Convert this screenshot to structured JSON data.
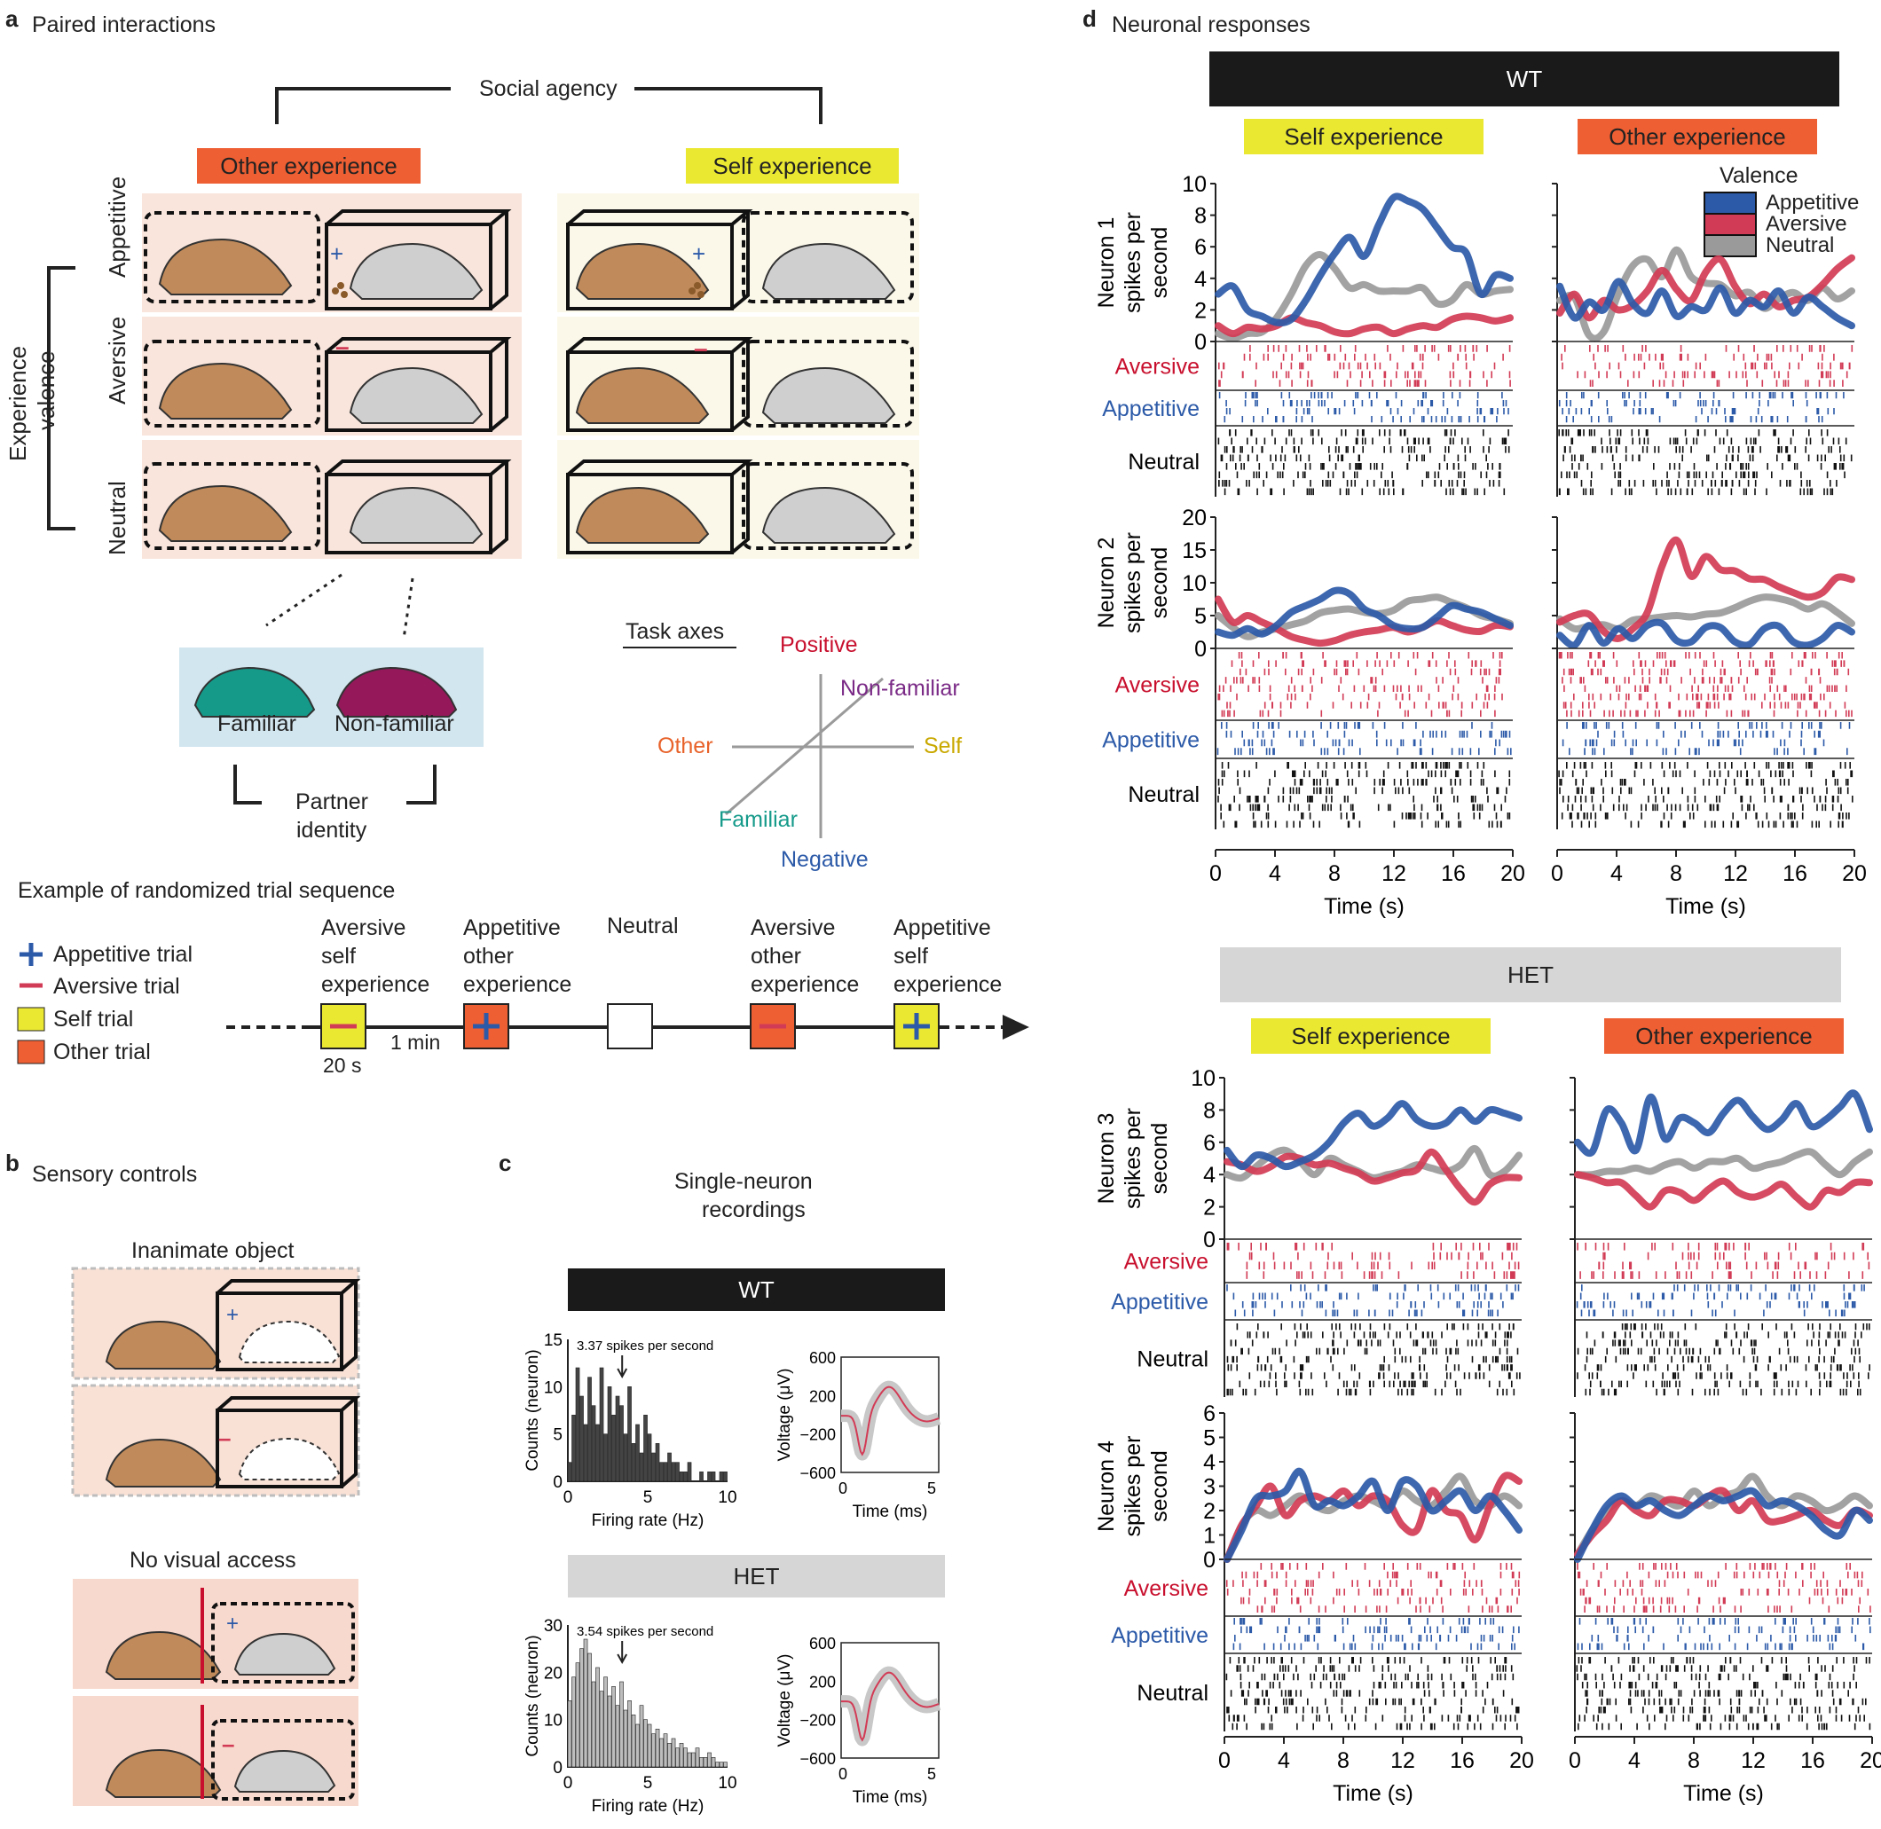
{
  "panel_a": {
    "letter": "a",
    "title": "Paired interactions",
    "social_agency": "Social agency",
    "other_experience": "Other experience",
    "self_experience": "Self experience",
    "experience_valence": [
      "Experience",
      "valence"
    ],
    "rows": [
      "Appetitive",
      "Aversive",
      "Neutral"
    ],
    "familiar": "Familiar",
    "non_familiar": "Non-familiar",
    "partner_identity": [
      "Partner",
      "identity"
    ],
    "task_axes": {
      "title": "Task axes",
      "positive": "Positive",
      "negative": "Negative",
      "non_familiar": "Non-familiar",
      "familiar": "Familiar",
      "other": "Other",
      "self": "Self"
    },
    "sequence": {
      "title": "Example of randomized trial sequence",
      "legend": [
        "Appetitive trial",
        "Aversive trial",
        "Self trial",
        "Other trial"
      ],
      "trials": [
        {
          "label": [
            "Aversive",
            "self",
            "experience"
          ]
        },
        {
          "label": [
            "Appetitive",
            "other",
            "experience"
          ]
        },
        {
          "label": [
            "Neutral"
          ]
        },
        {
          "label": [
            "Aversive",
            "other",
            "experience"
          ]
        },
        {
          "label": [
            "Appetitive",
            "self",
            "experience"
          ]
        }
      ],
      "duration_trial": "20 s",
      "duration_gap": "1 min"
    }
  },
  "panel_b": {
    "letter": "b",
    "title": "Sensory controls",
    "inanimate": "Inanimate object",
    "no_visual": "No visual access"
  },
  "panel_c": {
    "letter": "c",
    "title": [
      "Single-neuron",
      "recordings"
    ],
    "wt": "WT",
    "het": "HET",
    "wt_hist": {
      "annotation": "3.37 spikes per second",
      "ylabel": "Counts (neuron)",
      "xlabel": "Firing rate (Hz)",
      "yticks": [
        "0",
        "5",
        "10",
        "15"
      ],
      "xticks": [
        "0",
        "5",
        "10"
      ],
      "values": [
        2,
        7,
        12,
        9,
        6,
        11,
        8,
        6,
        12,
        5,
        10,
        7,
        9,
        8,
        5,
        10,
        4,
        6,
        3,
        7,
        5,
        3,
        4,
        2,
        2,
        3,
        2,
        2,
        1,
        1,
        2,
        0,
        0,
        1,
        0,
        1,
        1,
        0,
        1,
        1
      ]
    },
    "het_hist": {
      "annotation": "3.54 spikes per second",
      "ylabel": "Counts (neuron)",
      "xlabel": "Firing rate (Hz)",
      "yticks": [
        "0",
        "10",
        "20",
        "30"
      ],
      "xticks": [
        "0",
        "5",
        "10"
      ],
      "values": [
        14,
        19,
        22,
        25,
        27,
        24,
        18,
        21,
        16,
        19,
        15,
        17,
        13,
        18,
        12,
        14,
        11,
        9,
        13,
        10,
        9,
        7,
        8,
        6,
        7,
        5,
        6,
        4,
        5,
        4,
        3,
        3,
        4,
        2,
        2,
        3,
        2,
        1,
        1,
        1
      ]
    },
    "waveform": {
      "ylabel": "Voltage (μV)",
      "xlabel": "Time (ms)",
      "yticks": [
        "600",
        "200",
        "−200",
        "−600"
      ],
      "xticks": [
        "0",
        "5"
      ]
    }
  },
  "panel_d": {
    "letter": "d",
    "title": "Neuronal responses",
    "wt": "WT",
    "het": "HET",
    "self_experience": "Self experience",
    "other_experience": "Other experience",
    "legend_title": "Valence",
    "legend": [
      "Appetitive",
      "Aversive",
      "Neutral"
    ],
    "raster_labels": [
      "Aversive",
      "Appetitive",
      "Neutral"
    ],
    "xlabel": "Time (s)",
    "xticks": [
      "0",
      "4",
      "8",
      "12",
      "16",
      "20"
    ],
    "colors": {
      "appetitive": "#2c5aa8",
      "aversive": "#d23b55",
      "neutral": "#9a9a9a"
    },
    "neurons": [
      {
        "ylabel": [
          "Neuron 1",
          "spikes per",
          "second"
        ],
        "yticks": [
          "0",
          "2",
          "4",
          "6",
          "8",
          "10"
        ],
        "ymax": 10,
        "self": {
          "appetitive": [
            3,
            3.5,
            2,
            1.6,
            1.2,
            1.4,
            2.6,
            4.2,
            5.6,
            6.6,
            5.4,
            7.4,
            9.1,
            8.9,
            8.4,
            7.2,
            6,
            5.6,
            3,
            4.2,
            4
          ],
          "aversive": [
            1,
            0.5,
            0.9,
            0.8,
            1,
            1.5,
            1.2,
            1,
            0.6,
            0.5,
            0.8,
            0.9,
            0.5,
            0.8,
            1,
            0.9,
            1.4,
            1.6,
            1.5,
            1.3,
            1.5
          ],
          "neutral": [
            0.5,
            0.2,
            0.5,
            0.6,
            1.5,
            3,
            4.8,
            5.5,
            4.6,
            3.4,
            3.6,
            3.2,
            3.2,
            3.2,
            3.4,
            2.4,
            2.6,
            3.6,
            3,
            3.2,
            3.3
          ]
        },
        "other": {
          "appetitive": [
            3.5,
            1.5,
            2.5,
            2,
            3.8,
            2.4,
            1.8,
            3.2,
            1.6,
            2.2,
            2,
            3.4,
            1.8,
            2.6,
            2.2,
            3.2,
            1.8,
            2.8,
            2.2,
            1.5,
            1
          ],
          "aversive": [
            1.8,
            3,
            1.5,
            2.6,
            2,
            2.3,
            3.2,
            4.5,
            3.3,
            2.6,
            4.4,
            5.2,
            3.5,
            2.4,
            3,
            2.2,
            2.6,
            2.8,
            3.6,
            4.6,
            5.3
          ],
          "neutral": [
            2.6,
            2.8,
            0.4,
            0.6,
            3,
            4.8,
            5.2,
            4.1,
            5.8,
            4.1,
            3.7,
            3.6,
            2.9,
            3.1,
            2.1,
            2.7,
            3.1,
            2.6,
            3.4,
            2.7,
            3.2
          ]
        }
      },
      {
        "ylabel": [
          "Neuron 2",
          "spikes per",
          "second"
        ],
        "yticks": [
          "0",
          "5",
          "10",
          "15",
          "20"
        ],
        "ymax": 20,
        "self": {
          "appetitive": [
            2.5,
            2,
            3,
            2.2,
            3.5,
            5.5,
            6.5,
            7.5,
            8.8,
            8.3,
            6,
            5,
            3.5,
            3,
            3.2,
            4.8,
            6.5,
            6,
            5.5,
            4.5,
            3.5
          ],
          "aversive": [
            7.5,
            4,
            5,
            4,
            3,
            1.8,
            1.2,
            0.8,
            1.2,
            2,
            2.5,
            2.8,
            3.2,
            2.5,
            3.2,
            4.2,
            3.5,
            2.8,
            2.6,
            3.5,
            3.3
          ],
          "neutral": [
            5,
            3.2,
            1.8,
            2.5,
            3,
            3.6,
            4.2,
            5.4,
            5.8,
            6,
            5.5,
            5.3,
            5.8,
            7.2,
            7.5,
            7.8,
            7,
            6.2,
            5,
            4.5,
            3.8
          ]
        },
        "other": {
          "appetitive": [
            2,
            0.5,
            3.5,
            0.8,
            3,
            1.5,
            3.5,
            3.8,
            1.2,
            1,
            3.2,
            3.2,
            1,
            0.6,
            3,
            3.4,
            1,
            0.5,
            1.5,
            3.5,
            2.5
          ],
          "aversive": [
            4,
            5,
            5.2,
            2.6,
            1.5,
            3,
            5.5,
            12.5,
            16.5,
            11,
            14,
            12,
            11.8,
            10.6,
            10.5,
            9.4,
            8.5,
            7.8,
            8.5,
            10.8,
            10.5
          ],
          "neutral": [
            4.5,
            3,
            3.4,
            3.6,
            3,
            4.3,
            4.5,
            4.8,
            5,
            4.8,
            5.2,
            5.4,
            6.2,
            7.2,
            7.8,
            7.6,
            7,
            6,
            6.8,
            5.5,
            3.8
          ]
        }
      },
      {
        "ylabel": [
          "Neuron 3",
          "spikes per",
          "second"
        ],
        "yticks": [
          "0",
          "2",
          "4",
          "6",
          "8",
          "10"
        ],
        "ymax": 10,
        "self": {
          "appetitive": [
            5.5,
            4.5,
            5.2,
            5,
            4.5,
            4.8,
            5.2,
            6,
            7.2,
            7.8,
            7,
            7.5,
            8.4,
            7.4,
            7,
            7.2,
            8,
            7.3,
            8,
            7.8,
            7.5
          ],
          "aversive": [
            4.8,
            4.6,
            4.2,
            4.5,
            5.1,
            5,
            4.6,
            4.7,
            4.4,
            4.1,
            3.6,
            3.8,
            4.1,
            4.3,
            5.4,
            4.3,
            3.1,
            2.3,
            3.4,
            3.8,
            3.8
          ],
          "neutral": [
            4,
            3.8,
            4.5,
            5.2,
            5.5,
            4.8,
            4,
            5,
            4.6,
            4.2,
            3.8,
            4,
            4.2,
            4.6,
            4.4,
            4.2,
            4.6,
            5.6,
            4,
            4.2,
            5.2
          ]
        },
        "other": {
          "appetitive": [
            6,
            5.4,
            8,
            7.2,
            5.5,
            8.8,
            6.2,
            7.5,
            7.2,
            6.6,
            7.8,
            8.6,
            7.6,
            6.8,
            7.4,
            8.4,
            7,
            7.4,
            8.2,
            9,
            6.8
          ],
          "aversive": [
            4,
            3.8,
            3.5,
            3.5,
            2.7,
            2,
            3,
            2.9,
            2.4,
            3.1,
            3.6,
            2.9,
            2.6,
            2.9,
            3.4,
            2.6,
            2,
            3,
            2.9,
            3.5,
            3.5
          ],
          "neutral": [
            4,
            4,
            4.2,
            4.2,
            4.4,
            4.2,
            4.6,
            4.8,
            4.4,
            4.8,
            4.8,
            5,
            4.4,
            4.6,
            4.8,
            5.2,
            5.4,
            4.6,
            4,
            4.8,
            5.4
          ]
        }
      },
      {
        "ylabel": [
          "Neuron 4",
          "spikes per",
          "second"
        ],
        "yticks": [
          "0",
          "1",
          "2",
          "3",
          "4",
          "5",
          "6"
        ],
        "ymax": 6,
        "self": {
          "appetitive": [
            0,
            1.2,
            2.5,
            2.6,
            2.8,
            3.6,
            2.2,
            2.4,
            2.2,
            2.6,
            3.2,
            2,
            3.2,
            3,
            2,
            2.4,
            2.8,
            2,
            2.6,
            2,
            1.2
          ],
          "aversive": [
            0,
            1.4,
            2.2,
            3,
            1.8,
            2.4,
            2.6,
            2.4,
            2.8,
            2.2,
            2.6,
            2.4,
            1.4,
            1.2,
            2.8,
            2,
            1.8,
            0.8,
            2.2,
            3.4,
            3.2
          ],
          "neutral": [
            0,
            1.4,
            2,
            1.8,
            2.2,
            2.6,
            2.2,
            2,
            2.4,
            2.6,
            2.4,
            2.2,
            2.8,
            2.4,
            2.2,
            2.8,
            3.4,
            2.4,
            2.2,
            2.6,
            2.2
          ]
        },
        "other": {
          "appetitive": [
            0,
            1.2,
            2.2,
            2.6,
            2.2,
            2.4,
            2,
            1.8,
            2.2,
            2.6,
            2.4,
            2.6,
            2.8,
            2.2,
            2.4,
            2.2,
            1.8,
            1.2,
            1,
            2,
            1.6
          ],
          "aversive": [
            0.2,
            1,
            1.6,
            2.4,
            2,
            1.8,
            2.4,
            2.4,
            2.2,
            2.6,
            2.8,
            2,
            2.4,
            1.6,
            1.6,
            1.8,
            2,
            1.6,
            1.4,
            2,
            1.8
          ],
          "neutral": [
            0.2,
            1.2,
            2,
            2.4,
            2.2,
            2.6,
            2.4,
            2.2,
            2.8,
            2.2,
            2.6,
            2.8,
            3.4,
            2.6,
            2.2,
            2.6,
            2.4,
            2,
            2.2,
            2.6,
            2.2
          ]
        }
      }
    ]
  }
}
